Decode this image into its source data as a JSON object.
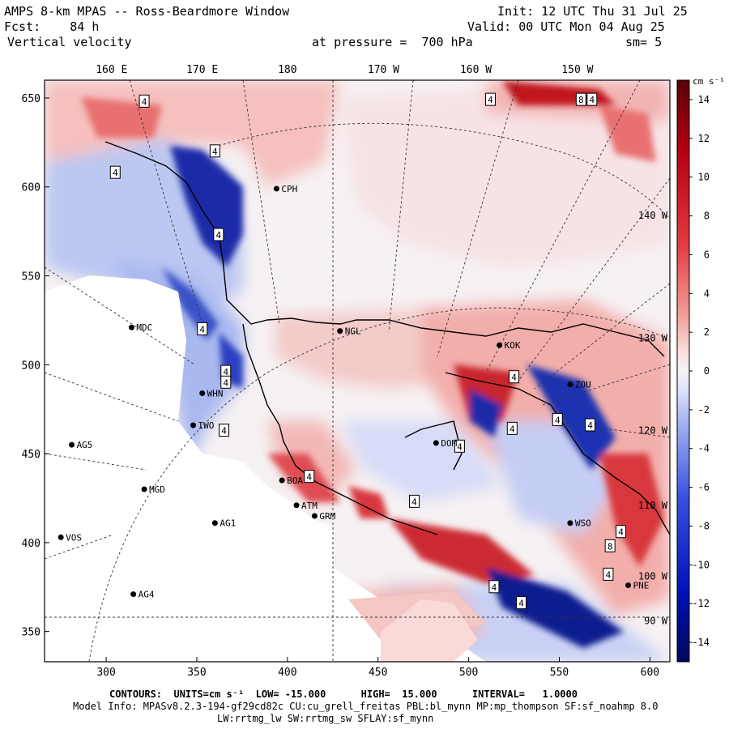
{
  "header": {
    "line1_left": "AMPS 8-km MPAS -- Ross-Beardmore Window",
    "line1_right": "Init: 12 UTC Thu 31 Jul 25",
    "line2_left": "Fcst:    84 h",
    "line2_right": "Valid: 00 UTC Mon 04 Aug 25",
    "line3_left": "Vertical velocity",
    "line3_mid": "at pressure =  700 hPa",
    "line3_right": "sm= 5"
  },
  "footer": {
    "line1": "CONTOURS:  UNITS=cm s⁻¹  LOW= -15.000      HIGH=  15.000      INTERVAL=   1.0000",
    "line2": "Model Info: MPASv8.2.3-194-gf29cd82c CU:cu_grell_freitas PBL:bl_mynn MP:mp_thompson SF:sf_noahmp 8.0",
    "line3": "LW:rrtmg_lw SW:rrtmg_sw SFLAY:sf_mynn"
  },
  "colors": {
    "deep_blue": "#00106e",
    "mid_blue": "#3a52c8",
    "light_blue": "#c9d2f5",
    "neutral": "#f4f2f5",
    "light_red": "#f6c7c4",
    "mid_red": "#e2484c",
    "deep_red": "#7d0010"
  },
  "chart_data": {
    "type": "heatmap",
    "title": "Vertical velocity",
    "x_ticks": [
      300,
      350,
      400,
      450,
      500,
      550,
      600
    ],
    "x_range": [
      266,
      611
    ],
    "y_ticks": [
      350,
      400,
      450,
      500,
      550,
      600,
      650
    ],
    "y_range": [
      333,
      660
    ],
    "top_lon_labels": [
      {
        "label": "160 E",
        "x": 303
      },
      {
        "label": "170 E",
        "x": 353
      },
      {
        "label": "180",
        "x": 400
      },
      {
        "label": "170 W",
        "x": 453
      },
      {
        "label": "160 W",
        "x": 504
      },
      {
        "label": "150 W",
        "x": 560
      }
    ],
    "right_lon_labels": [
      {
        "label": "140 W",
        "y": 584
      },
      {
        "label": "130 W",
        "y": 515
      },
      {
        "label": "120 W",
        "y": 463
      },
      {
        "label": "110 W",
        "y": 421
      },
      {
        "label": "100 W",
        "y": 381
      },
      {
        "label": "90 W",
        "y": 356
      }
    ],
    "colorbar": {
      "units": "cm s⁻¹",
      "labels": [
        14,
        12,
        10,
        8,
        6,
        4,
        2,
        0,
        -2,
        -4,
        -6,
        -8,
        -10,
        -12,
        -14
      ],
      "range": [
        -15,
        15
      ],
      "interval": 1
    },
    "contour_labels": [
      {
        "label": "4",
        "x": 321,
        "y": 648
      },
      {
        "label": "4",
        "x": 360,
        "y": 620
      },
      {
        "label": "4",
        "x": 305,
        "y": 608
      },
      {
        "label": "4",
        "x": 362,
        "y": 573
      },
      {
        "label": "4",
        "x": 353,
        "y": 520
      },
      {
        "label": "4",
        "x": 366,
        "y": 496
      },
      {
        "label": "4",
        "x": 366,
        "y": 490
      },
      {
        "label": "4",
        "x": 365,
        "y": 463
      },
      {
        "label": "4",
        "x": 412,
        "y": 437
      },
      {
        "label": "4",
        "x": 470,
        "y": 423
      },
      {
        "label": "4",
        "x": 512,
        "y": 649
      },
      {
        "label": "8",
        "x": 562,
        "y": 649
      },
      {
        "label": "4",
        "x": 568,
        "y": 649
      },
      {
        "label": "4",
        "x": 525,
        "y": 493
      },
      {
        "label": "4",
        "x": 524,
        "y": 464
      },
      {
        "label": "4",
        "x": 495,
        "y": 454
      },
      {
        "label": "4",
        "x": 549,
        "y": 469
      },
      {
        "label": "4",
        "x": 567,
        "y": 466
      },
      {
        "label": "4",
        "x": 584,
        "y": 406
      },
      {
        "label": "8",
        "x": 578,
        "y": 398
      },
      {
        "label": "4",
        "x": 577,
        "y": 382
      },
      {
        "label": "4",
        "x": 514,
        "y": 375
      },
      {
        "label": "4",
        "x": 529,
        "y": 366
      }
    ],
    "stations": [
      {
        "name": "MDC",
        "x": 314,
        "y": 521
      },
      {
        "name": "WHN",
        "x": 353,
        "y": 484
      },
      {
        "name": "IWO",
        "x": 348,
        "y": 466
      },
      {
        "name": "AG5",
        "x": 281,
        "y": 455
      },
      {
        "name": "MGD",
        "x": 321,
        "y": 430
      },
      {
        "name": "AG1",
        "x": 360,
        "y": 411
      },
      {
        "name": "VOS",
        "x": 275,
        "y": 403
      },
      {
        "name": "AG4",
        "x": 315,
        "y": 371
      },
      {
        "name": "NGL",
        "x": 429,
        "y": 519
      },
      {
        "name": "CPH",
        "x": 394,
        "y": 599
      },
      {
        "name": "GRM",
        "x": 415,
        "y": 415
      },
      {
        "name": "ATM",
        "x": 405,
        "y": 421
      },
      {
        "name": "BOA",
        "x": 397,
        "y": 435
      },
      {
        "name": "DOM",
        "x": 482,
        "y": 456
      },
      {
        "name": "KOK",
        "x": 517,
        "y": 511
      },
      {
        "name": "ZOU",
        "x": 556,
        "y": 489
      },
      {
        "name": "WSO",
        "x": 556,
        "y": 411
      },
      {
        "name": "PNE",
        "x": 588,
        "y": 376
      }
    ]
  }
}
